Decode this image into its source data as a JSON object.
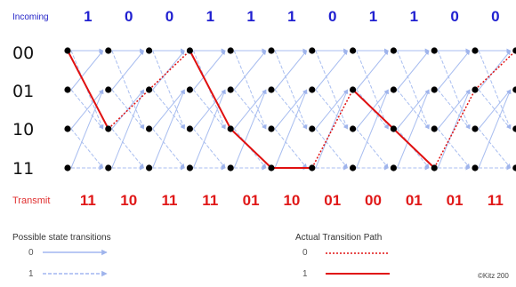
{
  "header": {
    "incoming_label": "Incoming",
    "incoming_bits": [
      "1",
      "0",
      "0",
      "1",
      "1",
      "1",
      "0",
      "1",
      "1",
      "0",
      "0"
    ]
  },
  "states": [
    "00",
    "01",
    "10",
    "11"
  ],
  "footer": {
    "transmit_label": "Transmit",
    "transmit_symbols": [
      "11",
      "10",
      "11",
      "11",
      "01",
      "10",
      "01",
      "00",
      "01",
      "01",
      "11"
    ]
  },
  "legend": {
    "possible_title": "Possible state transitions",
    "possible_keys": [
      "0",
      "1"
    ],
    "actual_title": "Actual Transition Path",
    "actual_keys": [
      "0",
      "1"
    ]
  },
  "copyright": "©Kitz 200",
  "colors": {
    "grid_line": "#a9bef0",
    "path": "#e01010",
    "bits": "#2020d0",
    "transmit": "#e01818"
  },
  "trellis": {
    "stage_count": 11,
    "path_states": [
      0,
      2,
      1,
      0,
      2,
      3,
      3,
      1,
      2,
      3,
      1,
      0
    ],
    "path_bits": [
      1,
      0,
      0,
      1,
      1,
      1,
      0,
      1,
      1,
      0,
      0
    ]
  }
}
